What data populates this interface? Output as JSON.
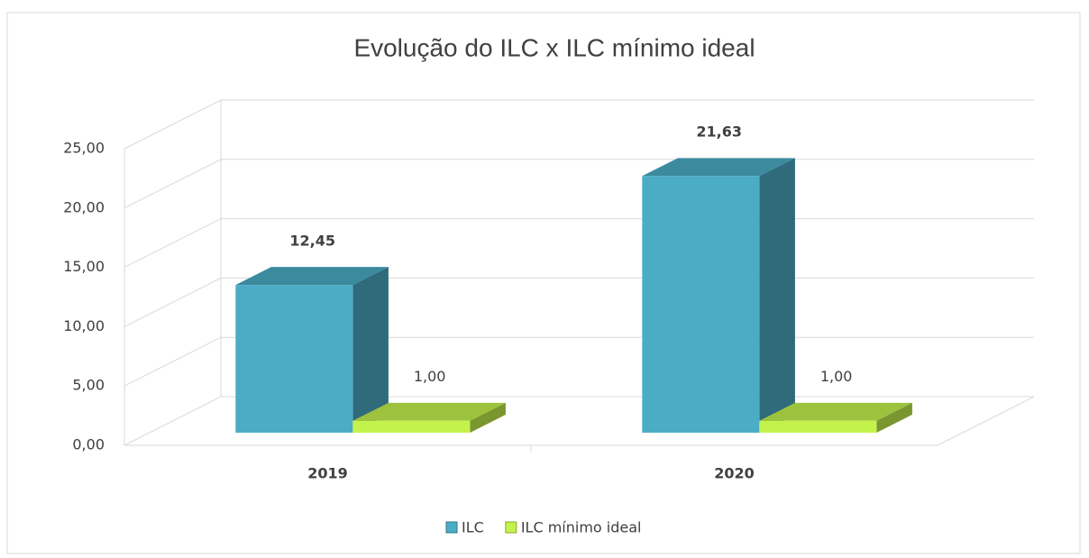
{
  "chart_data": {
    "type": "bar3d",
    "title": "Evolução do ILC x ILC mínimo ideal",
    "categories": [
      "2019",
      "2020"
    ],
    "series": [
      {
        "name": "ILC",
        "color": "#4bacc6",
        "values": [
          12.45,
          21.63
        ],
        "value_labels": [
          "12,45",
          "21,63"
        ]
      },
      {
        "name": "ILC mínimo ideal",
        "color": "#c4f24c",
        "values": [
          1.0,
          1.0
        ],
        "value_labels": [
          "1,00",
          "1,00"
        ]
      }
    ],
    "ylim": [
      0,
      25
    ],
    "yticks": [
      {
        "value": 0,
        "label": "0,00"
      },
      {
        "value": 5,
        "label": "5,00"
      },
      {
        "value": 10,
        "label": "10,00"
      },
      {
        "value": 15,
        "label": "15,00"
      },
      {
        "value": 20,
        "label": "20,00"
      },
      {
        "value": 25,
        "label": "25,00"
      }
    ],
    "grid": true,
    "legend": "bottom"
  }
}
